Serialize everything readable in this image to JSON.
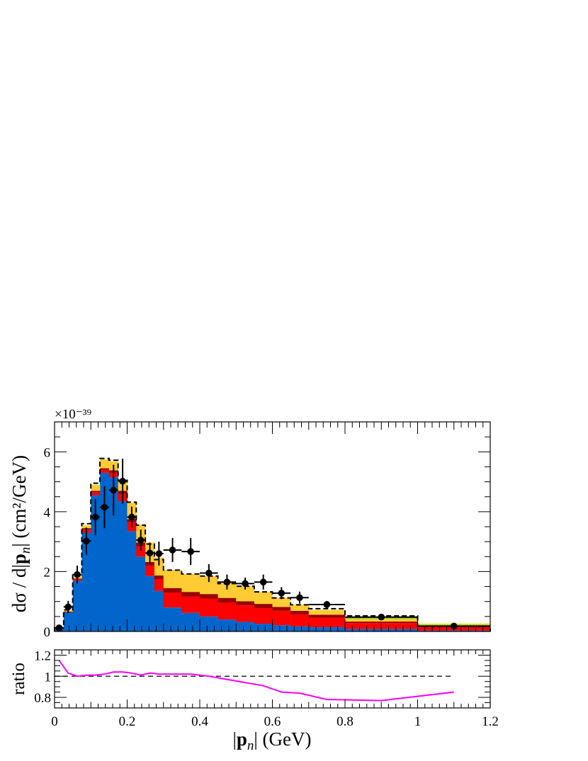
{
  "chart_data": [
    {
      "type": "bar",
      "stacked": true,
      "ylabel": "dσ / d|p_n| (cm²/GeV)",
      "yexponent": "×10⁻³⁹",
      "xlim": [
        0,
        1.2
      ],
      "ylim": [
        0,
        7
      ],
      "yticks": [
        0,
        2,
        4,
        6
      ],
      "bin_edges": [
        0,
        0.025,
        0.05,
        0.075,
        0.1,
        0.125,
        0.15,
        0.175,
        0.2,
        0.225,
        0.25,
        0.275,
        0.3,
        0.35,
        0.4,
        0.45,
        0.5,
        0.55,
        0.6,
        0.65,
        0.7,
        0.8,
        1.0,
        1.2
      ],
      "series": [
        {
          "color": "#0066cc",
          "values": [
            0.1,
            0.65,
            1.7,
            3.3,
            4.55,
            5.3,
            5.15,
            4.35,
            3.35,
            2.5,
            1.85,
            1.35,
            0.8,
            0.62,
            0.5,
            0.4,
            0.32,
            0.26,
            0.21,
            0.17,
            0.14,
            0.08,
            0.03
          ]
        },
        {
          "color": "#ff0000",
          "values": [
            0.0,
            0.02,
            0.05,
            0.1,
            0.1,
            0.1,
            0.15,
            0.25,
            0.3,
            0.35,
            0.35,
            0.4,
            0.5,
            0.55,
            0.6,
            0.57,
            0.55,
            0.52,
            0.48,
            0.4,
            0.32,
            0.2,
            0.15
          ]
        },
        {
          "color": "#990000",
          "values": [
            0.0,
            0.0,
            0.02,
            0.05,
            0.05,
            0.05,
            0.08,
            0.1,
            0.1,
            0.12,
            0.12,
            0.12,
            0.15,
            0.15,
            0.15,
            0.15,
            0.14,
            0.14,
            0.13,
            0.12,
            0.1,
            0.05,
            0.02
          ]
        },
        {
          "color": "#ffcc33",
          "values": [
            0.0,
            0.03,
            0.08,
            0.1,
            0.2,
            0.3,
            0.3,
            0.3,
            0.55,
            0.6,
            0.65,
            0.6,
            0.6,
            0.6,
            0.6,
            0.5,
            0.5,
            0.4,
            0.3,
            0.2,
            0.16,
            0.08,
            0.02
          ]
        },
        {
          "color": "#99cc33",
          "values": [
            0.0,
            0.0,
            0.0,
            0.0,
            0.0,
            0.0,
            0.0,
            0.0,
            0.0,
            0.0,
            0.0,
            0.0,
            0.0,
            0.0,
            0.0,
            0.0,
            0.0,
            0.0,
            0.0,
            0.0,
            0.0,
            0.05,
            0.03
          ]
        },
        {
          "color": "#ffff99",
          "values": [
            0.0,
            0.0,
            0.0,
            0.0,
            0.0,
            0.0,
            0.0,
            0.0,
            0.0,
            0.0,
            0.0,
            0.0,
            0.0,
            0.0,
            0.0,
            0.0,
            0.0,
            0.0,
            0.0,
            0.0,
            0.0,
            0.06,
            0.04
          ]
        }
      ],
      "total_dashed": [
        0.12,
        0.72,
        1.88,
        3.6,
        4.95,
        5.78,
        5.72,
        5.05,
        4.32,
        3.55,
        2.92,
        2.4,
        2.05,
        1.92,
        1.85,
        1.6,
        1.51,
        1.32,
        1.12,
        0.89,
        0.76,
        0.52,
        0.17
      ],
      "data_points": {
        "x": [
          0.0125,
          0.0375,
          0.0625,
          0.0875,
          0.1125,
          0.1375,
          0.1625,
          0.1875,
          0.2125,
          0.2375,
          0.2625,
          0.2875,
          0.325,
          0.375,
          0.425,
          0.475,
          0.525,
          0.575,
          0.625,
          0.675,
          0.75,
          0.9,
          1.1
        ],
        "y": [
          0.12,
          0.82,
          1.9,
          3.02,
          3.82,
          4.15,
          4.72,
          5.02,
          3.82,
          3.05,
          2.62,
          2.6,
          2.72,
          2.67,
          1.95,
          1.65,
          1.6,
          1.65,
          1.28,
          1.13,
          0.9,
          0.48,
          0.18
        ],
        "yerr": [
          0.05,
          0.2,
          0.3,
          0.45,
          0.6,
          0.7,
          0.85,
          0.75,
          0.35,
          0.35,
          0.35,
          0.4,
          0.4,
          0.45,
          0.3,
          0.25,
          0.2,
          0.25,
          0.2,
          0.2,
          0.12,
          0.08,
          0.05
        ]
      }
    },
    {
      "type": "line",
      "xlabel": "|p_n| (GeV)",
      "ylabel": "ratio",
      "xlim": [
        0,
        1.2
      ],
      "ylim": [
        0.7,
        1.25
      ],
      "yticks": [
        0.8,
        1,
        1.2
      ],
      "ytick_labels": [
        "0.8",
        "1",
        "1.2"
      ],
      "xticks": [
        0,
        0.2,
        0.4,
        0.6,
        0.8,
        1,
        1.2
      ],
      "xtick_labels": [
        "0",
        "0.2",
        "0.4",
        "0.6",
        "0.8",
        "1",
        "1.2"
      ],
      "reference": 1.0,
      "series": [
        {
          "color": "#ff00ff",
          "x": [
            0.0125,
            0.0375,
            0.0625,
            0.0875,
            0.1125,
            0.1375,
            0.1625,
            0.1875,
            0.2125,
            0.2375,
            0.2625,
            0.2875,
            0.325,
            0.375,
            0.425,
            0.475,
            0.525,
            0.575,
            0.625,
            0.675,
            0.75,
            0.9,
            1.1
          ],
          "y": [
            1.15,
            1.03,
            1.0,
            1.01,
            1.01,
            1.02,
            1.04,
            1.04,
            1.03,
            1.01,
            1.03,
            1.02,
            1.02,
            1.02,
            1.0,
            0.97,
            0.94,
            0.91,
            0.85,
            0.84,
            0.78,
            0.77,
            0.85
          ]
        }
      ]
    }
  ]
}
